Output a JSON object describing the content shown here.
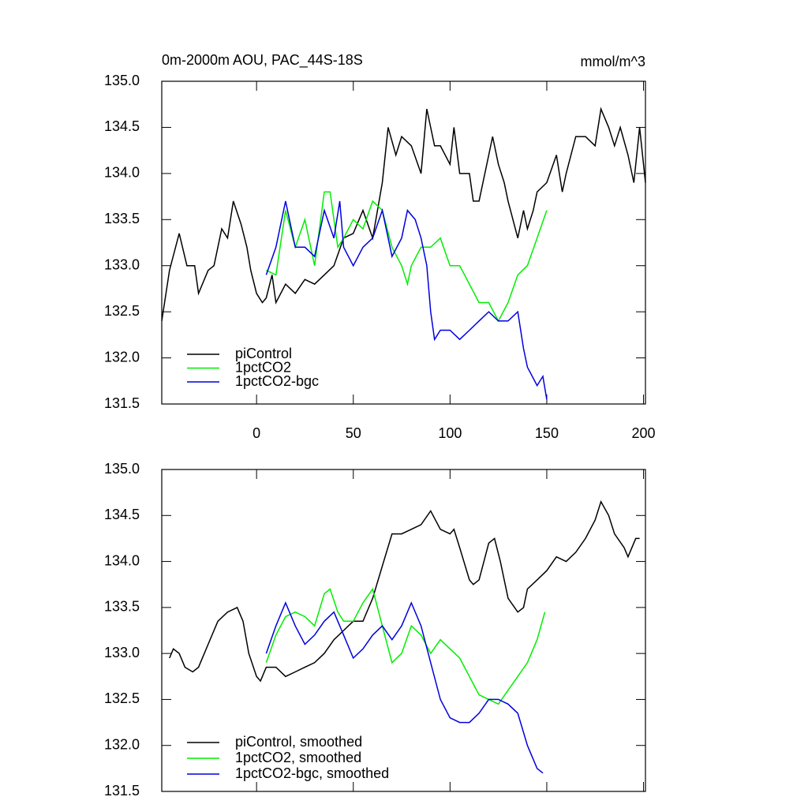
{
  "chart_data": [
    {
      "type": "line",
      "title": "0m-2000m AOU, PAC_44S-18S",
      "units": "mmol/m^3",
      "xlim": [
        -49,
        201
      ],
      "ylim": [
        131.5,
        135.0
      ],
      "xticks": [
        0,
        50,
        100,
        150,
        200
      ],
      "yticks": [
        {
          "value": 131.5,
          "label": "131.5"
        },
        {
          "value": 132.0,
          "label": "132.0"
        },
        {
          "value": 132.5,
          "label": "132.5"
        },
        {
          "value": 133.0,
          "label": "133.0"
        },
        {
          "value": 133.5,
          "label": "133.5"
        },
        {
          "value": 134.0,
          "label": "134.0"
        },
        {
          "value": 134.5,
          "label": "134.5"
        },
        {
          "value": 135.0,
          "label": "135.0"
        }
      ],
      "legend": "lower left",
      "series": [
        {
          "name": "piControl",
          "color": "#000000",
          "x": [
            -49,
            -45,
            -40,
            -36,
            -32,
            -30,
            -25,
            -22,
            -18,
            -15,
            -12,
            -8,
            -5,
            -3,
            0,
            3,
            5,
            8,
            10,
            15,
            20,
            25,
            30,
            35,
            40,
            45,
            50,
            55,
            60,
            65,
            68,
            72,
            75,
            80,
            85,
            88,
            92,
            95,
            100,
            102,
            105,
            110,
            112,
            115,
            120,
            122,
            125,
            128,
            130,
            135,
            138,
            140,
            143,
            145,
            150,
            155,
            158,
            160,
            165,
            170,
            175,
            178,
            182,
            185,
            188,
            192,
            195,
            198,
            201
          ],
          "values": [
            132.4,
            132.95,
            133.35,
            133.0,
            133.0,
            132.7,
            132.95,
            133.0,
            133.4,
            133.3,
            133.7,
            133.45,
            133.2,
            132.95,
            132.7,
            132.6,
            132.65,
            132.9,
            132.6,
            132.8,
            132.7,
            132.85,
            132.8,
            132.9,
            133.0,
            133.3,
            133.35,
            133.6,
            133.3,
            133.9,
            134.5,
            134.2,
            134.4,
            134.3,
            134.0,
            134.7,
            134.3,
            134.3,
            134.1,
            134.5,
            134.0,
            134.0,
            133.7,
            133.7,
            134.2,
            134.4,
            134.1,
            133.9,
            133.7,
            133.3,
            133.6,
            133.4,
            133.6,
            133.8,
            133.9,
            134.2,
            133.8,
            134.0,
            134.4,
            134.4,
            134.3,
            134.7,
            134.5,
            134.3,
            134.5,
            134.2,
            133.9,
            134.5,
            133.9
          ]
        },
        {
          "name": "1pctCO2",
          "color": "#00ee00",
          "x": [
            5,
            10,
            15,
            20,
            25,
            30,
            35,
            38,
            42,
            45,
            50,
            55,
            60,
            65,
            70,
            75,
            78,
            80,
            85,
            90,
            95,
            100,
            105,
            110,
            115,
            120,
            125,
            130,
            135,
            140,
            145,
            150
          ],
          "values": [
            132.95,
            132.9,
            133.6,
            133.2,
            133.5,
            133.0,
            133.8,
            133.8,
            133.2,
            133.3,
            133.5,
            133.4,
            133.7,
            133.6,
            133.2,
            133.0,
            132.8,
            133.0,
            133.2,
            133.2,
            133.3,
            133.0,
            133.0,
            132.8,
            132.6,
            132.6,
            132.4,
            132.6,
            132.9,
            133.0,
            133.3,
            133.6
          ]
        },
        {
          "name": "1pctCO2-bgc",
          "color": "#0000dd",
          "x": [
            5,
            10,
            15,
            20,
            25,
            30,
            35,
            40,
            43,
            45,
            50,
            55,
            60,
            65,
            70,
            75,
            78,
            82,
            85,
            88,
            90,
            92,
            95,
            100,
            105,
            110,
            115,
            120,
            125,
            130,
            135,
            138,
            140,
            145,
            148,
            150
          ],
          "values": [
            132.9,
            133.2,
            133.7,
            133.2,
            133.2,
            133.1,
            133.6,
            133.3,
            133.7,
            133.2,
            133.0,
            133.2,
            133.3,
            133.6,
            133.1,
            133.3,
            133.6,
            133.5,
            133.3,
            133.0,
            132.5,
            132.2,
            132.3,
            132.3,
            132.2,
            132.3,
            132.4,
            132.5,
            132.4,
            132.4,
            132.5,
            132.1,
            131.9,
            131.7,
            131.8,
            131.55
          ]
        }
      ]
    },
    {
      "type": "line",
      "xlim": [
        -49,
        201
      ],
      "ylim": [
        131.5,
        135.0
      ],
      "xticks": [
        0,
        50,
        100,
        150,
        200
      ],
      "yticks": [
        {
          "value": 131.5,
          "label": "131.5"
        },
        {
          "value": 132.0,
          "label": "132.0"
        },
        {
          "value": 132.5,
          "label": "132.5"
        },
        {
          "value": 133.0,
          "label": "133.0"
        },
        {
          "value": 133.5,
          "label": "133.5"
        },
        {
          "value": 134.0,
          "label": "134.0"
        },
        {
          "value": 134.5,
          "label": "134.5"
        },
        {
          "value": 135.0,
          "label": "135.0"
        }
      ],
      "legend": "lower left",
      "series": [
        {
          "name": "piControl, smoothed",
          "color": "#000000",
          "x": [
            -45,
            -43,
            -40,
            -37,
            -33,
            -30,
            -25,
            -20,
            -15,
            -10,
            -7,
            -4,
            0,
            2,
            5,
            10,
            15,
            20,
            25,
            30,
            35,
            40,
            45,
            50,
            55,
            60,
            65,
            70,
            75,
            80,
            85,
            90,
            95,
            100,
            102,
            105,
            110,
            112,
            115,
            120,
            123,
            126,
            130,
            135,
            138,
            140,
            145,
            150,
            155,
            160,
            165,
            170,
            175,
            178,
            182,
            185,
            190,
            192,
            196,
            198
          ],
          "values": [
            132.95,
            133.05,
            133.0,
            132.85,
            132.8,
            132.85,
            133.1,
            133.35,
            133.45,
            133.5,
            133.35,
            133.0,
            132.75,
            132.7,
            132.85,
            132.85,
            132.75,
            132.8,
            132.85,
            132.9,
            133.0,
            133.15,
            133.25,
            133.35,
            133.35,
            133.6,
            133.95,
            134.3,
            134.3,
            134.35,
            134.4,
            134.55,
            134.35,
            134.3,
            134.35,
            134.15,
            133.8,
            133.75,
            133.8,
            134.2,
            134.25,
            134.0,
            133.6,
            133.45,
            133.5,
            133.7,
            133.8,
            133.9,
            134.05,
            134.0,
            134.1,
            134.25,
            134.45,
            134.65,
            134.5,
            134.3,
            134.15,
            134.05,
            134.25,
            134.25
          ]
        },
        {
          "name": "1pctCO2, smoothed",
          "color": "#00ee00",
          "x": [
            5,
            10,
            15,
            20,
            25,
            30,
            35,
            38,
            42,
            45,
            50,
            55,
            60,
            65,
            70,
            75,
            80,
            85,
            90,
            95,
            100,
            105,
            110,
            115,
            120,
            125,
            130,
            135,
            140,
            145,
            149
          ],
          "values": [
            132.9,
            133.2,
            133.4,
            133.45,
            133.4,
            133.3,
            133.65,
            133.7,
            133.45,
            133.35,
            133.35,
            133.55,
            133.7,
            133.3,
            132.9,
            133.0,
            133.3,
            133.2,
            133.0,
            133.15,
            133.05,
            132.95,
            132.75,
            132.55,
            132.5,
            132.45,
            132.6,
            132.75,
            132.9,
            133.15,
            133.45
          ]
        },
        {
          "name": "1pctCO2-bgc, smoothed",
          "color": "#0000dd",
          "x": [
            5,
            10,
            15,
            20,
            25,
            30,
            35,
            40,
            45,
            50,
            55,
            60,
            65,
            70,
            75,
            80,
            85,
            90,
            95,
            100,
            105,
            110,
            115,
            120,
            125,
            130,
            135,
            140,
            145,
            148
          ],
          "values": [
            133.0,
            133.3,
            133.55,
            133.3,
            133.1,
            133.2,
            133.35,
            133.45,
            133.2,
            132.95,
            133.05,
            133.2,
            133.3,
            133.15,
            133.3,
            133.55,
            133.3,
            132.9,
            132.5,
            132.3,
            132.25,
            132.25,
            132.35,
            132.5,
            132.5,
            132.45,
            132.35,
            132.0,
            131.75,
            131.7
          ]
        }
      ]
    }
  ]
}
